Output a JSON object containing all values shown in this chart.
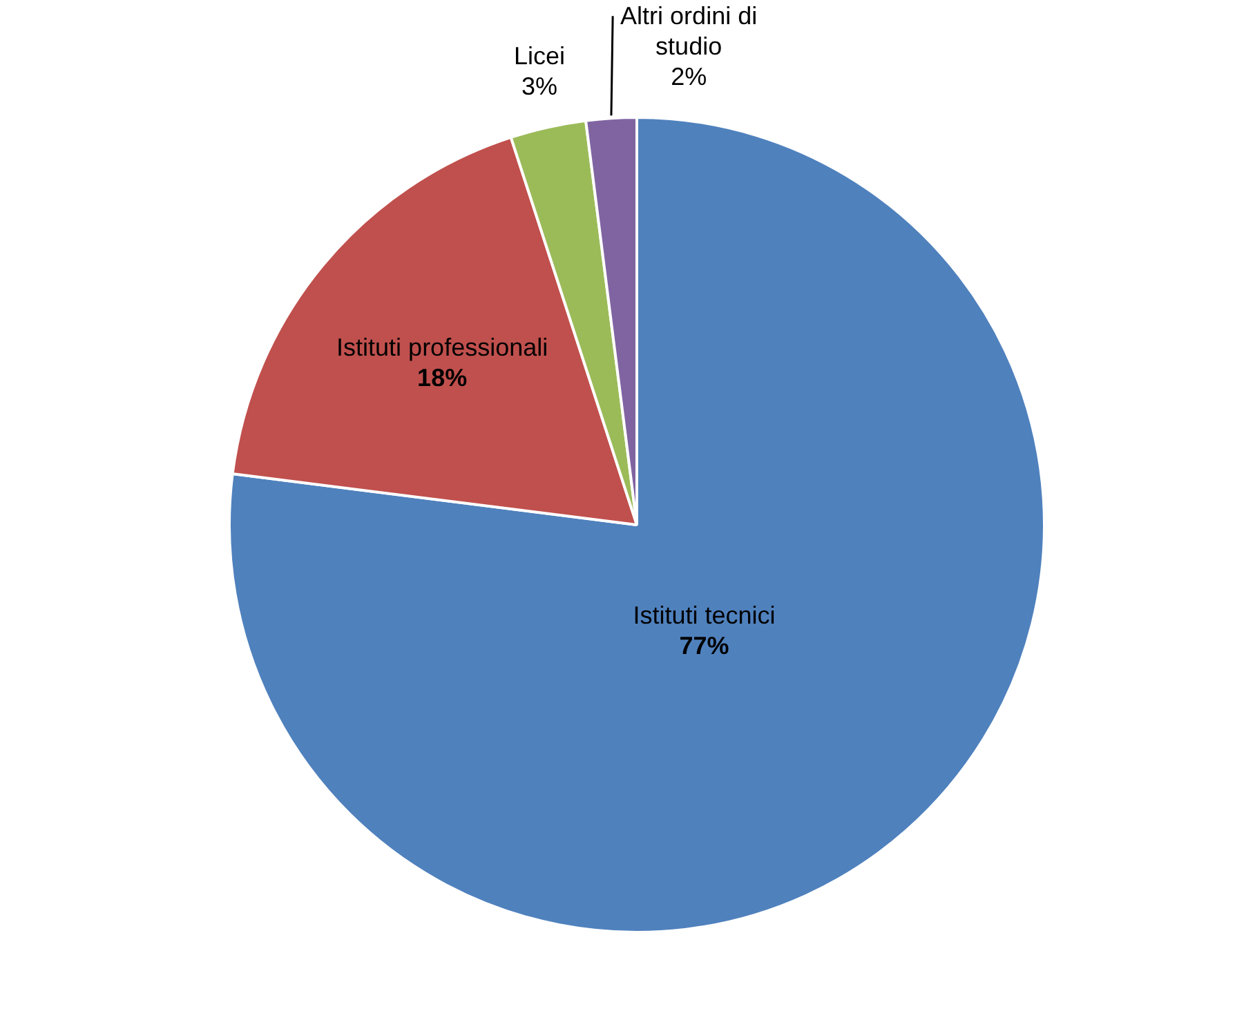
{
  "chart_data": {
    "type": "pie",
    "categories": [
      "Istituti tecnici",
      "Istituti professionali",
      "Licei",
      "Altri ordini di studio"
    ],
    "values": [
      77,
      18,
      3,
      2
    ],
    "colors": [
      "#4f81bd",
      "#c0504d",
      "#9bbb59",
      "#8064a2"
    ],
    "value_labels": [
      "77%",
      "18%",
      "3%",
      "2%"
    ],
    "legend": false
  }
}
